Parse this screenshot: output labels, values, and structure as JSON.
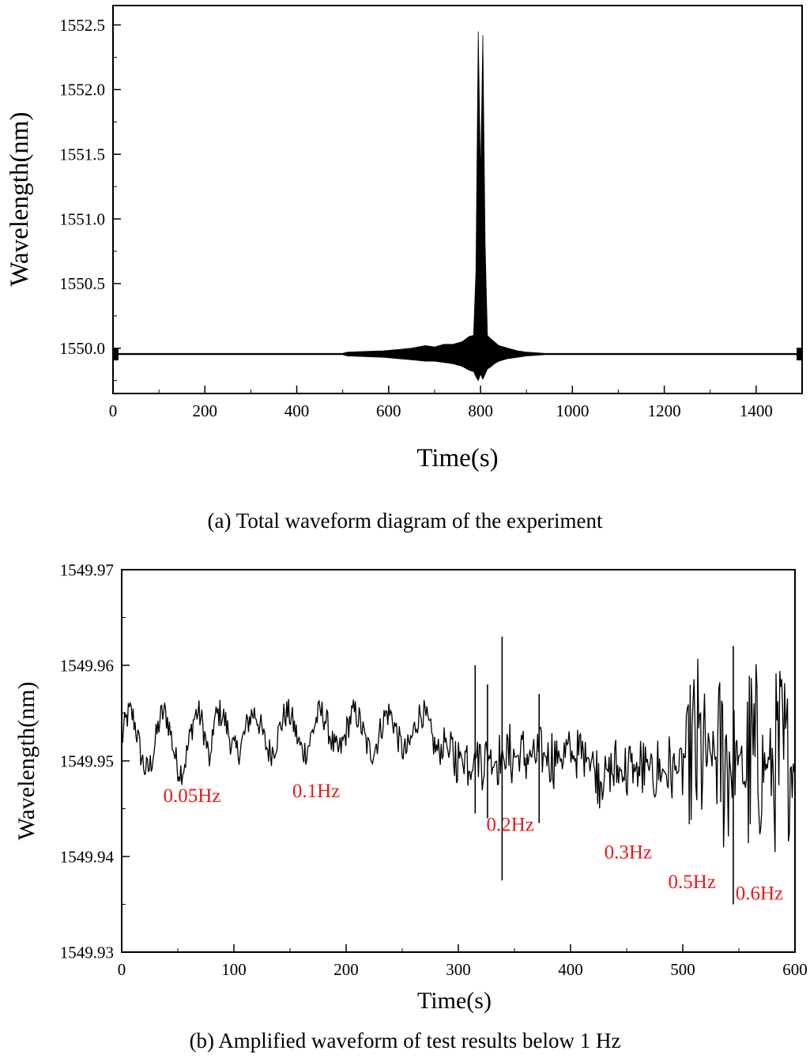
{
  "captions": {
    "a": "(a) Total waveform diagram of the experiment",
    "b": "(b) Amplified waveform of test results below 1 Hz"
  },
  "chart_data": [
    {
      "type": "line",
      "xlabel": "Time(s)",
      "ylabel": "Wavelength(nm)",
      "xlim": [
        0,
        1500
      ],
      "ylim": [
        1549.65,
        1552.65
      ],
      "xticks": [
        0,
        200,
        400,
        600,
        800,
        1000,
        1200,
        1400
      ],
      "yticks": [
        1550.0,
        1550.5,
        1551.0,
        1551.5,
        1552.0,
        1552.5
      ],
      "ytick_labels": [
        "1550.0",
        "1550.5",
        "1551.0",
        "1551.5",
        "1552.0",
        "1552.5"
      ],
      "grid": false,
      "line_color": "#000000",
      "baseline": 1549.955,
      "envelope": {
        "x": [
          0,
          500,
          510,
          550,
          590,
          620,
          650,
          680,
          700,
          720,
          740,
          760,
          775,
          785,
          790,
          795,
          800,
          805,
          810,
          815,
          820,
          830,
          840,
          860,
          880,
          900,
          920,
          940,
          945,
          1500
        ],
        "upper": [
          1549.96,
          1549.96,
          1549.97,
          1549.975,
          1549.98,
          1549.99,
          1550.0,
          1550.02,
          1550.01,
          1550.03,
          1550.03,
          1550.05,
          1550.09,
          1550.1,
          1550.6,
          1552.45,
          1551.3,
          1552.42,
          1550.8,
          1550.1,
          1550.08,
          1550.05,
          1550.02,
          1550.0,
          1549.98,
          1549.97,
          1549.965,
          1549.96,
          1549.96,
          1549.96
        ],
        "lower": [
          1549.95,
          1549.95,
          1549.94,
          1549.935,
          1549.93,
          1549.92,
          1549.91,
          1549.9,
          1549.9,
          1549.89,
          1549.88,
          1549.86,
          1549.83,
          1549.82,
          1549.78,
          1549.75,
          1549.8,
          1549.76,
          1549.8,
          1549.84,
          1549.85,
          1549.88,
          1549.9,
          1549.92,
          1549.93,
          1549.94,
          1549.945,
          1549.95,
          1549.95,
          1549.95
        ]
      },
      "markers": [
        {
          "x": 5,
          "y": 1549.955
        },
        {
          "x": 1495,
          "y": 1549.955
        }
      ]
    },
    {
      "type": "line",
      "xlabel": "Time(s)",
      "ylabel": "Wavelength(nm)",
      "xlim": [
        0,
        600
      ],
      "ylim": [
        1549.93,
        1549.97
      ],
      "xticks": [
        0,
        100,
        200,
        300,
        400,
        500,
        600
      ],
      "yticks": [
        1549.93,
        1549.94,
        1549.95,
        1549.96,
        1549.97
      ],
      "ytick_labels": [
        "1549.93",
        "1549.94",
        "1549.95",
        "1549.96",
        "1549.97"
      ],
      "grid": false,
      "line_color": "#000000",
      "annotation_color": "#e8191c",
      "segments": [
        {
          "start": 0,
          "end": 80,
          "freq": 0.05,
          "center": 1549.952,
          "amp": 0.003
        },
        {
          "start": 80,
          "end": 290,
          "freq": 0.1,
          "center": 1549.953,
          "amp": 0.002
        },
        {
          "start": 290,
          "end": 420,
          "freq": 0.2,
          "center": 1549.9505,
          "amp": 0.0035
        },
        {
          "start": 420,
          "end": 500,
          "freq": 0.3,
          "center": 1549.949,
          "amp": 0.004
        },
        {
          "start": 500,
          "end": 550,
          "freq": 0.5,
          "center": 1549.9505,
          "amp": 0.0105
        },
        {
          "start": 550,
          "end": 600,
          "freq": 0.6,
          "center": 1549.9495,
          "amp": 0.0115
        }
      ],
      "spikes": [
        {
          "x": 315,
          "low": 1549.9445,
          "high": 1549.96
        },
        {
          "x": 326,
          "low": 1549.944,
          "high": 1549.958
        },
        {
          "x": 339,
          "low": 1549.9375,
          "high": 1549.963
        },
        {
          "x": 372,
          "low": 1549.9435,
          "high": 1549.957
        },
        {
          "x": 545,
          "low": 1549.935,
          "high": 1549.962
        }
      ],
      "annotations": [
        {
          "text": "0.05Hz",
          "x": 37,
          "y": 1549.9457
        },
        {
          "text": "0.1Hz",
          "x": 152,
          "y": 1549.9462
        },
        {
          "text": "0.2Hz",
          "x": 325,
          "y": 1549.9427
        },
        {
          "text": "0.3Hz",
          "x": 430,
          "y": 1549.9398
        },
        {
          "text": "0.5Hz",
          "x": 487,
          "y": 1549.9367
        },
        {
          "text": "0.6Hz",
          "x": 547,
          "y": 1549.9355
        }
      ]
    }
  ]
}
